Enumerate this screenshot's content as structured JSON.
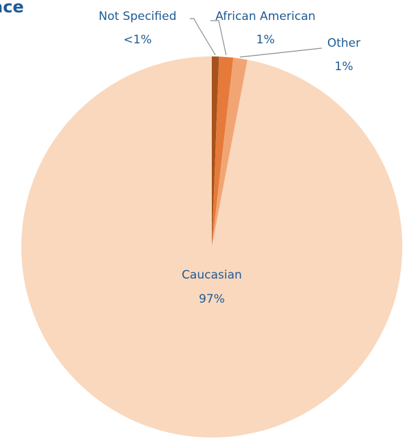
{
  "chart_data": {
    "type": "pie",
    "title": "ace",
    "slices": [
      {
        "label": "Not Specified",
        "value_label": "<1%",
        "value": 0.6,
        "color": "#a6521c"
      },
      {
        "label": "African American",
        "value_label": "1%",
        "value": 1.2,
        "color": "#e57a3b"
      },
      {
        "label": "Other",
        "value_label": "1%",
        "value": 1.2,
        "color": "#f2a574"
      },
      {
        "label": "Caucasian",
        "value_label": "97%",
        "value": 97,
        "color": "#f9d8be"
      }
    ],
    "start_angle_deg": 0,
    "direction": "clockwise",
    "legend": "none"
  },
  "colors": {
    "label_text": "#1e5a96",
    "leader_line": "#8c8c8c"
  }
}
